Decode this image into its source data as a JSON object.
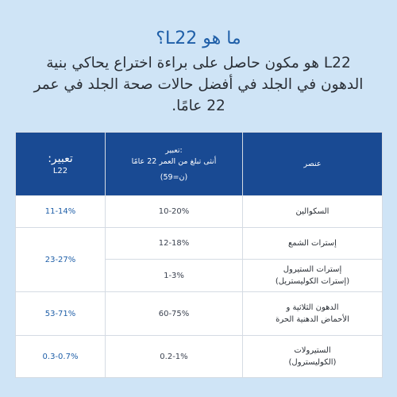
{
  "heading": {
    "title": "ما هو L22؟",
    "intro": "L22 هو مكون حاصل على براءة اختراع يحاكي بنية الدهون في الجلد في أفضل حالات صحة الجلد في عمر 22 عامًا."
  },
  "table": {
    "headers": {
      "component": "عنصر",
      "women_line1": "تعبير:",
      "women_line2": "أنثى تبلغ من العمر 22 عامًا",
      "women_line3": "(ن=59)",
      "l22_line1": "تعبير:",
      "l22_line2": "L22"
    },
    "rows": [
      {
        "component": [
          "السكوالين"
        ],
        "women": "10-20%",
        "l22": "11-14%"
      },
      {
        "component": [
          "إسترات الشمع"
        ],
        "women": "12-18%",
        "l22": "23-27%"
      },
      {
        "component": [
          "إسترات الستيرول",
          "(إسترات الكوليستريل)"
        ],
        "women": "1-3%"
      },
      {
        "component": [
          "الدهون الثلاثية و",
          "الأحماض الدهنية الحرة"
        ],
        "women": "60-75%",
        "l22": "53-71%"
      },
      {
        "component": [
          "الستيرولات",
          "(الكوليسترول)"
        ],
        "women": "0.2-1%",
        "l22": "0.3-0.7%"
      }
    ]
  },
  "colors": {
    "background": "#cfe4f6",
    "header": "#194a93",
    "title": "#1f5fa8"
  }
}
